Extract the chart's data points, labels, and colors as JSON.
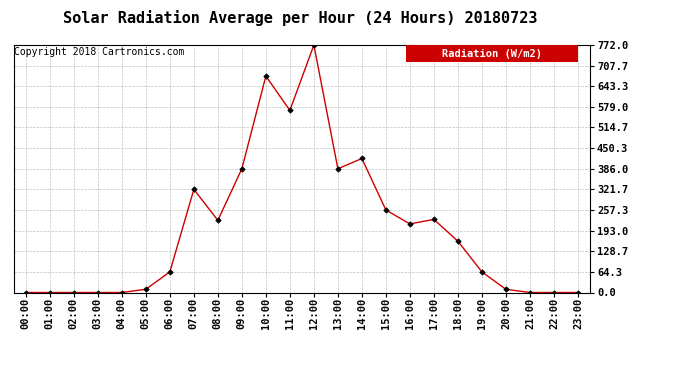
{
  "title": "Solar Radiation Average per Hour (24 Hours) 20180723",
  "copyright_text": "Copyright 2018 Cartronics.com",
  "legend_label": "Radiation (W/m2)",
  "hours": [
    "00:00",
    "01:00",
    "02:00",
    "03:00",
    "04:00",
    "05:00",
    "06:00",
    "07:00",
    "08:00",
    "09:00",
    "10:00",
    "11:00",
    "12:00",
    "13:00",
    "14:00",
    "15:00",
    "16:00",
    "17:00",
    "18:00",
    "19:00",
    "20:00",
    "21:00",
    "22:00",
    "23:00"
  ],
  "values": [
    0.0,
    0.0,
    0.0,
    0.0,
    0.0,
    10.0,
    64.3,
    321.7,
    225.0,
    386.0,
    675.0,
    568.0,
    772.0,
    386.0,
    418.0,
    257.3,
    214.0,
    228.0,
    160.0,
    64.3,
    10.0,
    0.0,
    0.0,
    0.0
  ],
  "line_color": "#cc0000",
  "marker_color": "#000000",
  "background_color": "#ffffff",
  "grid_color": "#bbbbbb",
  "ylim": [
    0.0,
    772.0
  ],
  "yticks": [
    0.0,
    64.3,
    128.7,
    193.0,
    257.3,
    321.7,
    386.0,
    450.3,
    514.7,
    579.0,
    643.3,
    707.7,
    772.0
  ],
  "legend_bg": "#cc0000",
  "legend_text_color": "#ffffff",
  "title_fontsize": 11,
  "copyright_fontsize": 7,
  "tick_fontsize": 7.5,
  "legend_fontsize": 7.5
}
